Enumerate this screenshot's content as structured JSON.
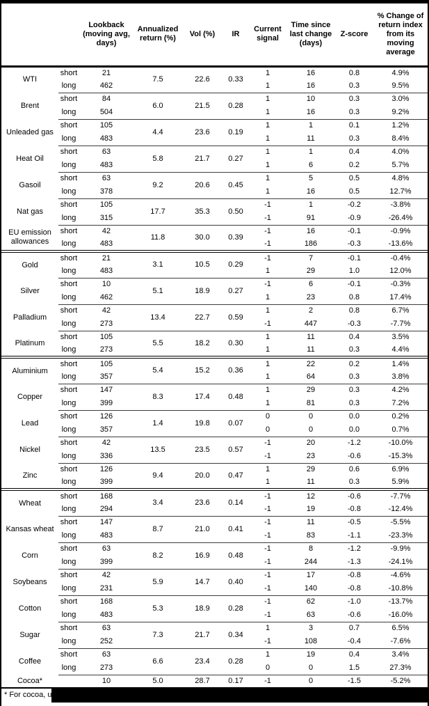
{
  "colors": {
    "text": "#000000",
    "background": "#ffffff",
    "rule_heavy": "#000000",
    "rule_thin": "#3c3c3c",
    "redaction": "#000000"
  },
  "table": {
    "columns": [
      "Lookback (moving avg, days)",
      "Annualized return (%)",
      "Vol (%)",
      "IR",
      "Current signal",
      "Time since last change (days)",
      "Z-score",
      "% Change of return index from its moving average"
    ],
    "sub_labels": [
      "short",
      "long"
    ],
    "commodities": [
      {
        "name": "WTI",
        "group_start": false,
        "lookback": [
          "21",
          "462"
        ],
        "ann_return": "7.5",
        "vol": "22.6",
        "ir": "0.33",
        "signal": [
          "1",
          "1"
        ],
        "time_since": [
          "16",
          "16"
        ],
        "z_score": [
          "0.8",
          "0.3"
        ],
        "pct_change": [
          "4.9%",
          "9.5%"
        ]
      },
      {
        "name": "Brent",
        "group_start": false,
        "lookback": [
          "84",
          "504"
        ],
        "ann_return": "6.0",
        "vol": "21.5",
        "ir": "0.28",
        "signal": [
          "1",
          "1"
        ],
        "time_since": [
          "10",
          "16"
        ],
        "z_score": [
          "0.3",
          "0.3"
        ],
        "pct_change": [
          "3.0%",
          "9.2%"
        ]
      },
      {
        "name": "Unleaded gas",
        "group_start": false,
        "lookback": [
          "105",
          "483"
        ],
        "ann_return": "4.4",
        "vol": "23.6",
        "ir": "0.19",
        "signal": [
          "1",
          "1"
        ],
        "time_since": [
          "1",
          "11"
        ],
        "z_score": [
          "0.1",
          "0.3"
        ],
        "pct_change": [
          "1.2%",
          "8.4%"
        ]
      },
      {
        "name": "Heat Oil",
        "group_start": false,
        "lookback": [
          "63",
          "483"
        ],
        "ann_return": "5.8",
        "vol": "21.7",
        "ir": "0.27",
        "signal": [
          "1",
          "1"
        ],
        "time_since": [
          "1",
          "6"
        ],
        "z_score": [
          "0.4",
          "0.2"
        ],
        "pct_change": [
          "4.0%",
          "5.7%"
        ]
      },
      {
        "name": "Gasoil",
        "group_start": false,
        "lookback": [
          "63",
          "378"
        ],
        "ann_return": "9.2",
        "vol": "20.6",
        "ir": "0.45",
        "signal": [
          "1",
          "1"
        ],
        "time_since": [
          "5",
          "16"
        ],
        "z_score": [
          "0.5",
          "0.5"
        ],
        "pct_change": [
          "4.8%",
          "12.7%"
        ]
      },
      {
        "name": "Nat gas",
        "group_start": false,
        "lookback": [
          "105",
          "315"
        ],
        "ann_return": "17.7",
        "vol": "35.3",
        "ir": "0.50",
        "signal": [
          "-1",
          "-1"
        ],
        "time_since": [
          "1",
          "91"
        ],
        "z_score": [
          "-0.2",
          "-0.9"
        ],
        "pct_change": [
          "-3.8%",
          "-26.4%"
        ]
      },
      {
        "name": "EU emission allowances",
        "group_start": false,
        "lookback": [
          "42",
          "483"
        ],
        "ann_return": "11.8",
        "vol": "30.0",
        "ir": "0.39",
        "signal": [
          "-1",
          "-1"
        ],
        "time_since": [
          "16",
          "186"
        ],
        "z_score": [
          "-0.1",
          "-0.3"
        ],
        "pct_change": [
          "-0.9%",
          "-13.6%"
        ]
      },
      {
        "name": "Gold",
        "group_start": true,
        "lookback": [
          "21",
          "483"
        ],
        "ann_return": "3.1",
        "vol": "10.5",
        "ir": "0.29",
        "signal": [
          "-1",
          "1"
        ],
        "time_since": [
          "7",
          "29"
        ],
        "z_score": [
          "-0.1",
          "1.0"
        ],
        "pct_change": [
          "-0.4%",
          "12.0%"
        ]
      },
      {
        "name": "Silver",
        "group_start": false,
        "lookback": [
          "10",
          "462"
        ],
        "ann_return": "5.1",
        "vol": "18.9",
        "ir": "0.27",
        "signal": [
          "-1",
          "1"
        ],
        "time_since": [
          "6",
          "23"
        ],
        "z_score": [
          "-0.1",
          "0.8"
        ],
        "pct_change": [
          "-0.3%",
          "17.4%"
        ]
      },
      {
        "name": "Palladium",
        "group_start": false,
        "lookback": [
          "42",
          "273"
        ],
        "ann_return": "13.4",
        "vol": "22.7",
        "ir": "0.59",
        "signal": [
          "1",
          "-1"
        ],
        "time_since": [
          "2",
          "447"
        ],
        "z_score": [
          "0.8",
          "-0.3"
        ],
        "pct_change": [
          "6.7%",
          "-7.7%"
        ]
      },
      {
        "name": "Platinum",
        "group_start": false,
        "lookback": [
          "105",
          "273"
        ],
        "ann_return": "5.5",
        "vol": "18.2",
        "ir": "0.30",
        "signal": [
          "1",
          "1"
        ],
        "time_since": [
          "11",
          "11"
        ],
        "z_score": [
          "0.4",
          "0.3"
        ],
        "pct_change": [
          "3.5%",
          "4.4%"
        ]
      },
      {
        "name": "Aluminium",
        "group_start": true,
        "lookback": [
          "105",
          "357"
        ],
        "ann_return": "5.4",
        "vol": "15.2",
        "ir": "0.36",
        "signal": [
          "1",
          "1"
        ],
        "time_since": [
          "22",
          "64"
        ],
        "z_score": [
          "0.2",
          "0.3"
        ],
        "pct_change": [
          "1.4%",
          "3.8%"
        ]
      },
      {
        "name": "Copper",
        "group_start": false,
        "lookback": [
          "147",
          "399"
        ],
        "ann_return": "8.3",
        "vol": "17.4",
        "ir": "0.48",
        "signal": [
          "1",
          "1"
        ],
        "time_since": [
          "29",
          "81"
        ],
        "z_score": [
          "0.3",
          "0.3"
        ],
        "pct_change": [
          "4.2%",
          "7.2%"
        ]
      },
      {
        "name": "Lead",
        "group_start": false,
        "lookback": [
          "126",
          "357"
        ],
        "ann_return": "1.4",
        "vol": "19.8",
        "ir": "0.07",
        "signal": [
          "0",
          "0"
        ],
        "time_since": [
          "0",
          "0"
        ],
        "z_score": [
          "0.0",
          "0.0"
        ],
        "pct_change": [
          "0.2%",
          "0.7%"
        ]
      },
      {
        "name": "Nickel",
        "group_start": false,
        "lookback": [
          "42",
          "336"
        ],
        "ann_return": "13.5",
        "vol": "23.5",
        "ir": "0.57",
        "signal": [
          "-1",
          "-1"
        ],
        "time_since": [
          "20",
          "23"
        ],
        "z_score": [
          "-1.2",
          "-0.6"
        ],
        "pct_change": [
          "-10.0%",
          "-15.3%"
        ]
      },
      {
        "name": "Zinc",
        "group_start": false,
        "lookback": [
          "126",
          "399"
        ],
        "ann_return": "9.4",
        "vol": "20.0",
        "ir": "0.47",
        "signal": [
          "1",
          "1"
        ],
        "time_since": [
          "29",
          "11"
        ],
        "z_score": [
          "0.6",
          "0.3"
        ],
        "pct_change": [
          "6.9%",
          "5.9%"
        ]
      },
      {
        "name": "Wheat",
        "group_start": true,
        "lookback": [
          "168",
          "294"
        ],
        "ann_return": "3.4",
        "vol": "23.6",
        "ir": "0.14",
        "signal": [
          "-1",
          "-1"
        ],
        "time_since": [
          "12",
          "19"
        ],
        "z_score": [
          "-0.6",
          "-0.8"
        ],
        "pct_change": [
          "-7.7%",
          "-12.4%"
        ]
      },
      {
        "name": "Kansas wheat",
        "group_start": false,
        "lookback": [
          "147",
          "483"
        ],
        "ann_return": "8.7",
        "vol": "21.0",
        "ir": "0.41",
        "signal": [
          "-1",
          "-1"
        ],
        "time_since": [
          "11",
          "83"
        ],
        "z_score": [
          "-0.5",
          "-1.1"
        ],
        "pct_change": [
          "-5.5%",
          "-23.3%"
        ]
      },
      {
        "name": "Corn",
        "group_start": false,
        "lookback": [
          "63",
          "399"
        ],
        "ann_return": "8.2",
        "vol": "16.9",
        "ir": "0.48",
        "signal": [
          "-1",
          "-1"
        ],
        "time_since": [
          "8",
          "244"
        ],
        "z_score": [
          "-1.2",
          "-1.3"
        ],
        "pct_change": [
          "-9.9%",
          "-24.1%"
        ]
      },
      {
        "name": "Soybeans",
        "group_start": false,
        "lookback": [
          "42",
          "231"
        ],
        "ann_return": "5.9",
        "vol": "14.7",
        "ir": "0.40",
        "signal": [
          "-1",
          "-1"
        ],
        "time_since": [
          "17",
          "140"
        ],
        "z_score": [
          "-0.8",
          "-0.8"
        ],
        "pct_change": [
          "-4.6%",
          "-10.8%"
        ]
      },
      {
        "name": "Cotton",
        "group_start": false,
        "lookback": [
          "168",
          "483"
        ],
        "ann_return": "5.3",
        "vol": "18.9",
        "ir": "0.28",
        "signal": [
          "-1",
          "-1"
        ],
        "time_since": [
          "62",
          "63"
        ],
        "z_score": [
          "-1.0",
          "-0.6"
        ],
        "pct_change": [
          "-13.7%",
          "-16.0%"
        ]
      },
      {
        "name": "Sugar",
        "group_start": false,
        "lookback": [
          "63",
          "252"
        ],
        "ann_return": "7.3",
        "vol": "21.7",
        "ir": "0.34",
        "signal": [
          "1",
          "-1"
        ],
        "time_since": [
          "3",
          "108"
        ],
        "z_score": [
          "0.7",
          "-0.4"
        ],
        "pct_change": [
          "6.5%",
          "-7.6%"
        ]
      },
      {
        "name": "Coffee",
        "group_start": false,
        "lookback": [
          "63",
          "273"
        ],
        "ann_return": "6.6",
        "vol": "23.4",
        "ir": "0.28",
        "signal": [
          "1",
          "0"
        ],
        "time_since": [
          "19",
          "0"
        ],
        "z_score": [
          "0.4",
          "1.5"
        ],
        "pct_change": [
          "3.4%",
          "27.3%"
        ]
      },
      {
        "name": "Cocoa*",
        "group_start": false,
        "single": true,
        "lookback": [
          "10"
        ],
        "ann_return": "5.0",
        "vol": "28.7",
        "ir": "0.17",
        "signal": [
          "-1"
        ],
        "time_since": [
          "0"
        ],
        "z_score": [
          "-1.5"
        ],
        "pct_change": [
          "-5.2%"
        ]
      }
    ]
  },
  "footnote": {
    "text": "* For cocoa, uses",
    "redacted": true
  }
}
